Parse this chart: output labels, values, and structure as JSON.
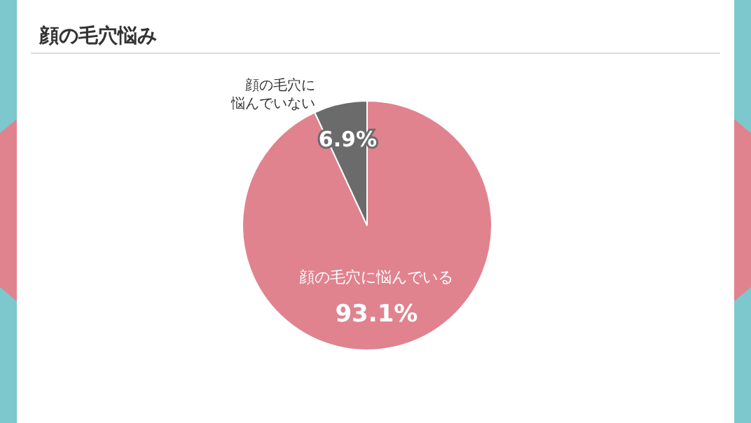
{
  "chart_data": {
    "type": "pie",
    "title": "顔の毛穴悩み",
    "categories": [
      "顔の毛穴に悩んでいる",
      "顔の毛穴に悩んでいない"
    ],
    "values": [
      93.1,
      6.9
    ],
    "colors": [
      "#e0838f",
      "#6b6b6b"
    ],
    "value_labels": [
      "93.1%",
      "6.9%"
    ]
  }
}
